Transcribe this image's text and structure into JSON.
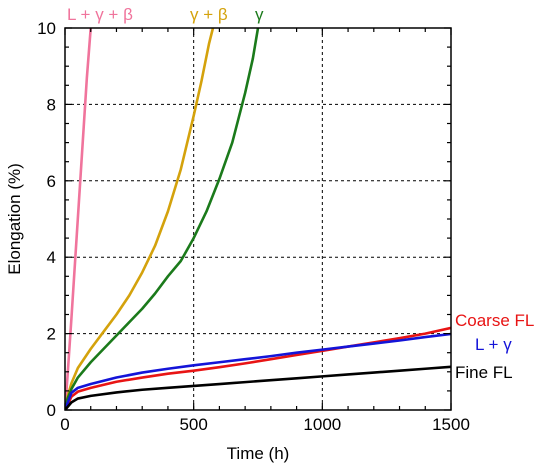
{
  "chart_data": {
    "type": "line",
    "xlabel": "Time (h)",
    "ylabel": "Elongation (%)",
    "xlim": [
      0,
      1500
    ],
    "ylim": [
      0,
      10
    ],
    "x_ticks": [
      0,
      500,
      1000,
      1500
    ],
    "y_ticks": [
      0,
      2,
      4,
      6,
      8,
      10
    ],
    "x_tick_labels": [
      "0",
      "500",
      "1000",
      "1500"
    ],
    "y_tick_labels": [
      "0",
      "2",
      "4",
      "6",
      "8",
      "10"
    ],
    "grid": true,
    "legend": "none (series labeled directly on the chart)",
    "series": [
      {
        "name": "L + γ + β",
        "color": "#f0749c",
        "x": [
          0,
          10,
          25,
          45,
          65,
          85,
          100
        ],
        "y": [
          0,
          0.9,
          2.4,
          4.5,
          6.6,
          8.7,
          10.0
        ]
      },
      {
        "name": "γ + β",
        "color": "#d4a20c",
        "x": [
          0,
          10,
          25,
          50,
          100,
          150,
          200,
          250,
          300,
          350,
          400,
          450,
          500,
          530,
          560,
          575
        ],
        "y": [
          0,
          0.35,
          0.7,
          1.1,
          1.6,
          2.05,
          2.5,
          3.0,
          3.6,
          4.3,
          5.2,
          6.3,
          7.7,
          8.6,
          9.6,
          10.0
        ]
      },
      {
        "name": "γ",
        "color": "#1b7a1b",
        "x": [
          0,
          10,
          25,
          50,
          100,
          150,
          200,
          250,
          300,
          350,
          400,
          450,
          500,
          550,
          600,
          650,
          700,
          730,
          750
        ],
        "y": [
          0,
          0.3,
          0.55,
          0.85,
          1.25,
          1.6,
          1.95,
          2.3,
          2.65,
          3.05,
          3.5,
          3.9,
          4.5,
          5.2,
          6.05,
          7.0,
          8.3,
          9.2,
          10.0
        ]
      },
      {
        "name": "Coarse FL",
        "color": "#e81414",
        "x": [
          0,
          25,
          50,
          100,
          200,
          300,
          400,
          500,
          600,
          700,
          800,
          900,
          1000,
          1100,
          1200,
          1300,
          1400,
          1500
        ],
        "y": [
          0,
          0.35,
          0.48,
          0.58,
          0.74,
          0.85,
          0.95,
          1.03,
          1.12,
          1.22,
          1.33,
          1.44,
          1.55,
          1.66,
          1.77,
          1.88,
          2.0,
          2.15
        ]
      },
      {
        "name": "L + γ",
        "color": "#1414d8",
        "x": [
          0,
          25,
          50,
          100,
          200,
          300,
          400,
          500,
          600,
          700,
          800,
          900,
          1000,
          1100,
          1200,
          1300,
          1400,
          1500
        ],
        "y": [
          0,
          0.45,
          0.58,
          0.68,
          0.85,
          0.98,
          1.08,
          1.17,
          1.25,
          1.33,
          1.41,
          1.5,
          1.58,
          1.66,
          1.74,
          1.82,
          1.91,
          1.99
        ]
      },
      {
        "name": "Fine FL",
        "color": "#000000",
        "x": [
          0,
          25,
          50,
          100,
          200,
          300,
          400,
          500,
          600,
          700,
          800,
          900,
          1000,
          1100,
          1200,
          1300,
          1400,
          1500
        ],
        "y": [
          0,
          0.2,
          0.3,
          0.37,
          0.46,
          0.53,
          0.58,
          0.63,
          0.68,
          0.73,
          0.78,
          0.83,
          0.88,
          0.93,
          0.98,
          1.03,
          1.08,
          1.13
        ]
      }
    ]
  }
}
